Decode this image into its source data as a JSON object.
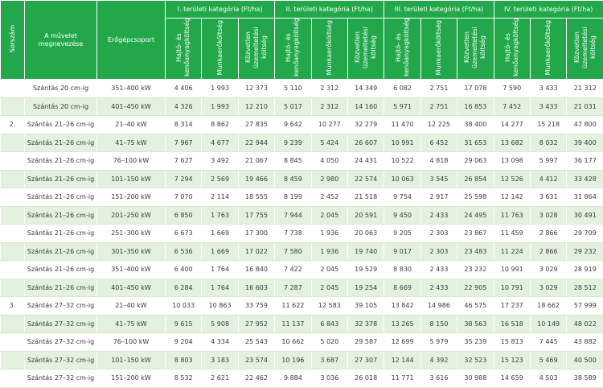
{
  "header": {
    "columns": [
      "Sorszám",
      "A művelet megnevezése",
      "Erőgépcsoport"
    ],
    "categories": [
      {
        "title": "I. területi kategória (Ft/ha)",
        "columns": [
          "Hajtó- és kenőanyagköltség",
          "Munkaerőköltség",
          "Közvetlen üzemeltetési költség"
        ]
      },
      {
        "title": "II. területi kategória (Ft/ha)",
        "columns": [
          "Hajtó- és kenőanyagköltség",
          "Munkaerőköltség",
          "Közvetlen üzemeltetési költség"
        ]
      },
      {
        "title": "III. területi kategória (Ft/ha)",
        "columns": [
          "Hajtó- és kenőanyagköltség",
          "Munkaerőköltség",
          "Közvetlen üzemeltetési költség"
        ]
      },
      {
        "title": "IV. területi kategória (Ft/ha)",
        "columns": [
          "Hajtó- és kenőanyagköltség",
          "Munkaerőköltség",
          "Közvetlen üzemeltetési költség"
        ]
      }
    ]
  },
  "table": {
    "rows": [
      {
        "number": null,
        "operation": "Szántás 20 cm-ig",
        "power": "351–400 kW",
        "values": [
          "4 406",
          "1 993",
          "12 373",
          "5 110",
          "2 312",
          "14 349",
          "6 082",
          "2 751",
          "17 078",
          "7 590",
          "3 433",
          "21 312"
        ]
      },
      {
        "number": null,
        "operation": "Szántás 20 cm-ig",
        "power": "401–450 kW",
        "values": [
          "4 326",
          "1 993",
          "12 210",
          "5 017",
          "2 312",
          "14 160",
          "5 971",
          "2 751",
          "16 853",
          "7 452",
          "3 433",
          "21 031"
        ]
      },
      {
        "number": "2.",
        "operation": "Szántás 21–26 cm-ig",
        "power": "21–40 kW",
        "values": [
          "8 314",
          "8 862",
          "27 835",
          "9 642",
          "10 277",
          "32 279",
          "11 470",
          "12 225",
          "38 400",
          "14 277",
          "15 218",
          "47 800"
        ]
      },
      {
        "number": null,
        "operation": "Szántás 21–26 cm-ig",
        "power": "41–75 kW",
        "values": [
          "7 967",
          "4 677",
          "22 944",
          "9 239",
          "5 424",
          "26 607",
          "10 991",
          "6 452",
          "31 653",
          "13 682",
          "8 032",
          "39 400"
        ]
      },
      {
        "number": null,
        "operation": "Szántás 21–26 cm-ig",
        "power": "76–100 kW",
        "values": [
          "7 627",
          "3 492",
          "21 067",
          "8 845",
          "4 050",
          "24 431",
          "10 522",
          "4 818",
          "29 063",
          "13 098",
          "5 997",
          "36 177"
        ]
      },
      {
        "number": null,
        "operation": "Szántás 21–26 cm-ig",
        "power": "101–150 kW",
        "values": [
          "7 294",
          "2 569",
          "19 466",
          "8 459",
          "2 980",
          "22 574",
          "10 063",
          "3 545",
          "26 854",
          "12 526",
          "4 412",
          "33 428"
        ]
      },
      {
        "number": null,
        "operation": "Szántás 21–26 cm-ig",
        "power": "151–200 kW",
        "values": [
          "7 070",
          "2 114",
          "18 555",
          "8 199",
          "2 452",
          "21 518",
          "9 754",
          "2 917",
          "25 598",
          "12 142",
          "3 631",
          "31 864"
        ]
      },
      {
        "number": null,
        "operation": "Szántás 21–26 cm-ig",
        "power": "201–250 kW",
        "values": [
          "6 850",
          "1 763",
          "17 755",
          "7 944",
          "2 045",
          "20 591",
          "9 450",
          "2 433",
          "24 495",
          "11 763",
          "3 028",
          "30 491"
        ]
      },
      {
        "number": null,
        "operation": "Szántás 21–26 cm-ig",
        "power": "251–300 kW",
        "values": [
          "6 673",
          "1 669",
          "17 300",
          "7 738",
          "1 936",
          "20 063",
          "9 205",
          "2 303",
          "23 867",
          "11 459",
          "2 866",
          "29 709"
        ]
      },
      {
        "number": null,
        "operation": "Szántás 21–26 cm-ig",
        "power": "301–350 kW",
        "values": [
          "6 536",
          "1 669",
          "17 022",
          "7 580",
          "1 936",
          "19 740",
          "9 017",
          "2 303",
          "23 483",
          "11 224",
          "2 866",
          "29 232"
        ]
      },
      {
        "number": null,
        "operation": "Szántás 21–26 cm-ig",
        "power": "351–400 kW",
        "values": [
          "6 400",
          "1 764",
          "16 840",
          "7 422",
          "2 045",
          "19 529",
          "8 830",
          "2 433",
          "23 232",
          "10 991",
          "3 029",
          "28 919"
        ]
      },
      {
        "number": null,
        "operation": "Szántás 21–26 cm-ig",
        "power": "401–450 kW",
        "values": [
          "6 284",
          "1 764",
          "16 603",
          "7 287",
          "2 045",
          "19 254",
          "8 669",
          "2 433",
          "22 905",
          "10 791",
          "3 029",
          "28 512"
        ]
      },
      {
        "number": "3.",
        "operation": "Szántás 27–32 cm-ig",
        "power": "21–40 kW",
        "values": [
          "10 033",
          "10 863",
          "33 759",
          "11 622",
          "12 583",
          "39 105",
          "13 842",
          "14 986",
          "46 575",
          "17 237",
          "18 662",
          "57 999"
        ]
      },
      {
        "number": null,
        "operation": "Szántás 27–32 cm-ig",
        "power": "41–75 kW",
        "values": [
          "9 615",
          "5 908",
          "27 952",
          "11 137",
          "6 843",
          "32 378",
          "13 265",
          "8 150",
          "38 563",
          "16 518",
          "10 149",
          "48 022"
        ]
      },
      {
        "number": null,
        "operation": "Szántás 27–32 cm-ig",
        "power": "76–100 kW",
        "values": [
          "9 204",
          "4 334",
          "25 543",
          "10 662",
          "5 020",
          "29 587",
          "12 699",
          "5 979",
          "35 239",
          "15 813",
          "7 445",
          "43 882"
        ]
      },
      {
        "number": null,
        "operation": "Szántás 27–32 cm-ig",
        "power": "101–150 kW",
        "values": [
          "8 803",
          "3 183",
          "23 574",
          "10 196",
          "3 687",
          "27 307",
          "12 144",
          "4 392",
          "32 523",
          "15 123",
          "5 469",
          "40 500"
        ]
      },
      {
        "number": null,
        "operation": "Szántás 27–32 cm-ig",
        "power": "151–200 kW",
        "values": [
          "8 532",
          "2 621",
          "22 462",
          "9 884",
          "3 036",
          "26 018",
          "11 771",
          "3 616",
          "30 988",
          "14 659",
          "4 503",
          "38 589"
        ]
      }
    ]
  }
}
